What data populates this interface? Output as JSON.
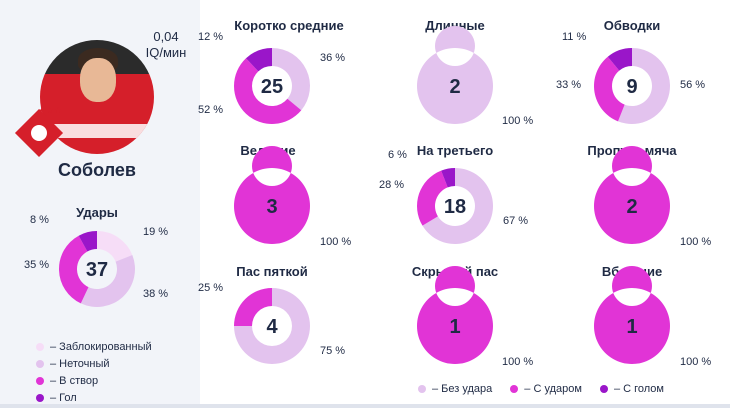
{
  "player": {
    "name": "Соболев",
    "iq_value": "0,04",
    "iq_unit": "IQ/мин"
  },
  "colors": {
    "blocked": "#f6ddf7",
    "miss": "#e3c3ee",
    "on_target": "#e134d6",
    "goal": "#9a16c9",
    "no_shot": "#e3c3ee",
    "with_shot": "#e134d6",
    "with_goal": "#9a16c9"
  },
  "legend_left": [
    {
      "label": "– Заблокированный",
      "color": "#f6ddf7"
    },
    {
      "label": "– Неточный",
      "color": "#e3c3ee"
    },
    {
      "label": "– В створ",
      "color": "#e134d6"
    },
    {
      "label": "– Гол",
      "color": "#9a16c9"
    }
  ],
  "legend_bottom": [
    {
      "label": "– Без удара",
      "color": "#e3c3ee"
    },
    {
      "label": "– С ударом",
      "color": "#e134d6"
    },
    {
      "label": "– С голом",
      "color": "#9a16c9"
    }
  ],
  "chart_data": [
    {
      "type": "pie",
      "id": "shots",
      "title": "Удары",
      "total": "37",
      "slices": [
        {
          "name": "Заблокированный",
          "value": 19,
          "label": "19 %"
        },
        {
          "name": "Неточный",
          "value": 38,
          "label": "38 %"
        },
        {
          "name": "В створ",
          "value": 35,
          "label": "35 %"
        },
        {
          "name": "Гол",
          "value": 8,
          "label": "8 %"
        }
      ]
    },
    {
      "type": "pie",
      "id": "short_medium",
      "title": "Коротко средние",
      "total": "25",
      "slices": [
        {
          "name": "Без удара",
          "value": 36,
          "label": "36 %"
        },
        {
          "name": "С ударом",
          "value": 52,
          "label": "52 %"
        },
        {
          "name": "С голом",
          "value": 12,
          "label": "12 %"
        }
      ]
    },
    {
      "type": "pie",
      "id": "long",
      "title": "Длинные",
      "total": "2",
      "slices": [
        {
          "name": "Без удара",
          "value": 100,
          "label": "100 %"
        }
      ]
    },
    {
      "type": "pie",
      "id": "dribbles",
      "title": "Обводки",
      "total": "9",
      "slices": [
        {
          "name": "Без удара",
          "value": 56,
          "label": "56 %"
        },
        {
          "name": "С ударом",
          "value": 33,
          "label": "33 %"
        },
        {
          "name": "С голом",
          "value": 11,
          "label": "11 %"
        }
      ]
    },
    {
      "type": "pie",
      "id": "carry",
      "title": "Ведение",
      "total": "3",
      "slices": [
        {
          "name": "С ударом",
          "value": 100,
          "label": "100 %"
        }
      ]
    },
    {
      "type": "pie",
      "id": "third",
      "title": "На третьего",
      "total": "18",
      "slices": [
        {
          "name": "Без удара",
          "value": 67,
          "label": "67 %"
        },
        {
          "name": "С ударом",
          "value": 28,
          "label": "28 %"
        },
        {
          "name": "С голом",
          "value": 6,
          "label": "6 %"
        }
      ]
    },
    {
      "type": "pie",
      "id": "dummy",
      "title": "Пропуск мяча",
      "total": "2",
      "slices": [
        {
          "name": "С ударом",
          "value": 100,
          "label": "100 %"
        }
      ]
    },
    {
      "type": "pie",
      "id": "heel",
      "title": "Пас пяткой",
      "total": "4",
      "slices": [
        {
          "name": "Без удара",
          "value": 75,
          "label": "75 %"
        },
        {
          "name": "С ударом",
          "value": 25,
          "label": "25 %"
        }
      ]
    },
    {
      "type": "pie",
      "id": "hidden",
      "title": "Скрытый пас",
      "total": "1",
      "slices": [
        {
          "name": "С ударом",
          "value": 100,
          "label": "100 %"
        }
      ]
    },
    {
      "type": "pie",
      "id": "run",
      "title": "Вбегание",
      "total": "1",
      "slices": [
        {
          "name": "С ударом",
          "value": 100,
          "label": "100 %"
        }
      ]
    }
  ]
}
